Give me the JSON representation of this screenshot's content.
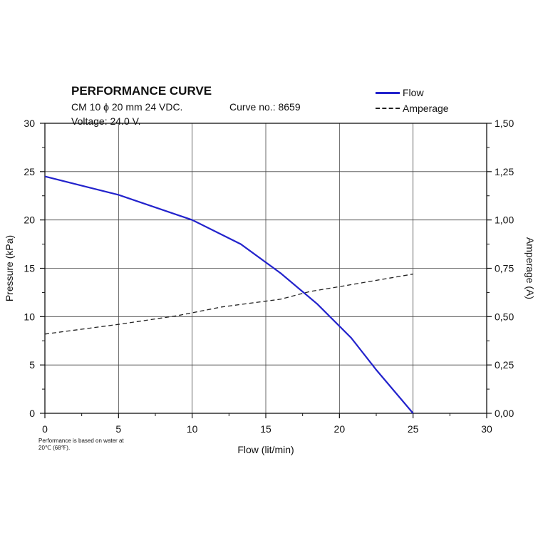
{
  "header": {
    "title": "PERFORMANCE CURVE",
    "model": "CM 10 ϕ 20 mm 24 VDC.",
    "curve_no": "Curve no.: 8659",
    "voltage": "Voltage: 24.0 V."
  },
  "note": "Performance is based on water at 20℃ (68℉).",
  "colors": {
    "flow": "#2323cc",
    "amperage": "#222222",
    "grid": "#444444"
  },
  "chart_data": {
    "type": "line",
    "xlabel": "Flow (lit/min)",
    "ylabel": "Pressure (kPa)",
    "y2label": "Amperage (A)",
    "xlim": [
      0,
      30
    ],
    "ylim": [
      0,
      30
    ],
    "y2lim": [
      0,
      1.5
    ],
    "x_ticks": [
      "0",
      "5",
      "10",
      "15",
      "20",
      "25",
      "30"
    ],
    "y_ticks": [
      "0",
      "5",
      "10",
      "15",
      "20",
      "25",
      "30"
    ],
    "y2_ticks": [
      "0,00",
      "0,25",
      "0,50",
      "0,75",
      "1,00",
      "1,25",
      "1,50"
    ],
    "grid": true,
    "legend_position": "top-right",
    "series": [
      {
        "name": "Flow",
        "axis": "left",
        "style": "solid",
        "points": [
          [
            0,
            24.5
          ],
          [
            5,
            22.6
          ],
          [
            10,
            20.0
          ],
          [
            13.3,
            17.5
          ],
          [
            16,
            14.5
          ],
          [
            18.5,
            11.3
          ],
          [
            20.8,
            7.8
          ],
          [
            22.5,
            4.5
          ],
          [
            25,
            0
          ]
        ]
      },
      {
        "name": "Amperage",
        "axis": "right",
        "style": "dashed",
        "points": [
          [
            0,
            0.41
          ],
          [
            5,
            0.46
          ],
          [
            9,
            0.505
          ],
          [
            12,
            0.55
          ],
          [
            16,
            0.59
          ],
          [
            18,
            0.63
          ],
          [
            20,
            0.655
          ],
          [
            25,
            0.72
          ]
        ]
      }
    ]
  }
}
